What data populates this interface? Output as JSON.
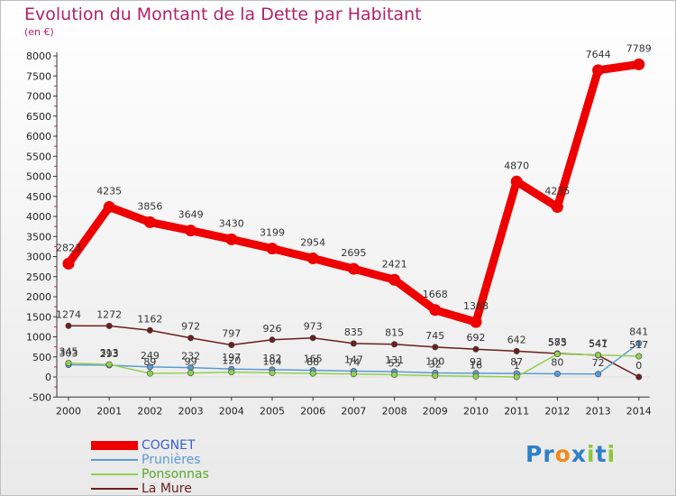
{
  "header": {
    "title": "Evolution du Montant de la Dette par Habitant",
    "unit": "(en €)"
  },
  "logo": {
    "text": "Proxiti",
    "letters": [
      "P",
      "r",
      "o",
      "x",
      "i",
      "t",
      "i"
    ],
    "colors": [
      "#2f7fc7",
      "#2f7fc7",
      "#f08a1c",
      "#2f7fc7",
      "#8cc63f",
      "#2f7fc7",
      "#8cc63f"
    ]
  },
  "chart_data": {
    "type": "line",
    "title": "Evolution du Montant de la Dette par Habitant",
    "subtitle": "(en €)",
    "x": [
      "2000",
      "2001",
      "2002",
      "2003",
      "2004",
      "2005",
      "2006",
      "2007",
      "2008",
      "2009",
      "2010",
      "2011",
      "2012",
      "2013",
      "2014"
    ],
    "ylim": [
      -500,
      8000
    ],
    "yticks": [
      -500,
      0,
      500,
      1000,
      1500,
      2000,
      2500,
      3000,
      3500,
      4000,
      4500,
      5000,
      5500,
      6000,
      6500,
      7000,
      7500,
      8000
    ],
    "grid": false,
    "legend": "bottom-left",
    "series": [
      {
        "name": "COGNET",
        "color": "#ee0000",
        "width": 9,
        "values": [
          2823,
          4235,
          3856,
          3649,
          3430,
          3199,
          2954,
          2695,
          2421,
          1668,
          1368,
          4870,
          4235,
          7644,
          7789
        ],
        "labels": [
          "2823",
          "4235",
          "3856",
          "3649",
          "3430",
          "3199",
          "2954",
          "2695",
          "2421",
          "1668",
          "1368",
          "4870",
          "4235",
          "7644",
          "7789"
        ]
      },
      {
        "name": "Prunières",
        "color": "#5b9bd5",
        "width": 1.5,
        "values": [
          303,
          293,
          249,
          232,
          197,
          182,
          165,
          147,
          131,
          100,
          93,
          87,
          80,
          72,
          841
        ],
        "labels": [
          "303",
          "293",
          "249",
          "232",
          "197",
          "182",
          "165",
          "147",
          "131",
          "100",
          "93",
          "87",
          "80",
          "72",
          "841"
        ]
      },
      {
        "name": "Ponsonnas",
        "color": "#92d050",
        "width": 1.5,
        "values": [
          345,
          313,
          89,
          99,
          120,
          104,
          88,
          74,
          55,
          32,
          16,
          1,
          573,
          547,
          517
        ],
        "labels": [
          "345",
          "313",
          "89",
          "99",
          "120",
          "104",
          "88",
          "74",
          "55",
          "32",
          "16",
          "1",
          "573",
          "547",
          "517"
        ]
      },
      {
        "name": "La Mure",
        "color": "#6b1e1e",
        "width": 1.5,
        "values": [
          1274,
          1272,
          1162,
          972,
          797,
          926,
          973,
          835,
          815,
          745,
          692,
          642,
          585,
          541,
          0
        ],
        "labels": [
          "1274",
          "1272",
          "1162",
          "972",
          "797",
          "926",
          "973",
          "835",
          "815",
          "745",
          "692",
          "642",
          "585",
          "541",
          "0"
        ]
      }
    ]
  }
}
